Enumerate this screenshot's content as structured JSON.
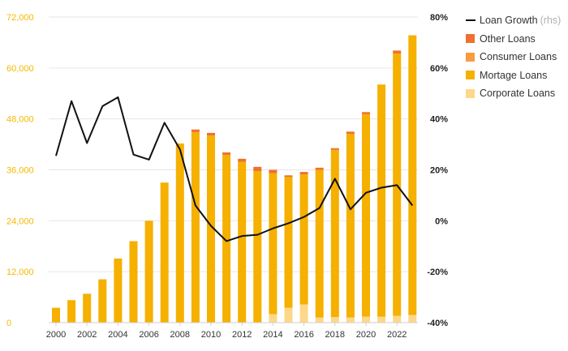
{
  "chart_data": {
    "type": "bar",
    "stacked": true,
    "x": [
      "2000",
      "2001",
      "2002",
      "2003",
      "2004",
      "2005",
      "2006",
      "2007",
      "2008",
      "2009",
      "2010",
      "2011",
      "2012",
      "2013",
      "2014",
      "2015",
      "2016",
      "2017",
      "2018",
      "2019",
      "2020",
      "2021",
      "2022",
      "2023"
    ],
    "x_tick_labels": [
      "2000",
      "2002",
      "2004",
      "2006",
      "2008",
      "2010",
      "2012",
      "2014",
      "2016",
      "2018",
      "2020",
      "2022"
    ],
    "y_left": {
      "ylim": [
        0,
        72000
      ],
      "ticks": [
        "0",
        "12,000",
        "24,000",
        "36,000",
        "48,000",
        "60,000",
        "72,000"
      ],
      "tick_values": [
        0,
        12000,
        24000,
        36000,
        48000,
        60000,
        72000
      ],
      "color": "#f5b800"
    },
    "y_right": {
      "ylim": [
        -40,
        80
      ],
      "ticks": [
        "-40%",
        "-20%",
        "0%",
        "20%",
        "40%",
        "60%",
        "80%"
      ],
      "tick_values": [
        -40,
        -20,
        0,
        20,
        40,
        60,
        80
      ]
    },
    "series": [
      {
        "name": "Corporate Loans",
        "color": "#fdd888",
        "values": [
          0,
          0,
          0,
          0,
          0,
          0,
          0,
          0,
          0,
          0,
          0,
          0,
          0,
          0,
          2000,
          3500,
          4300,
          1200,
          1300,
          1200,
          1400,
          1400,
          1600,
          1800
        ]
      },
      {
        "name": "Mortage Loans",
        "color": "#f5b000",
        "values": [
          3500,
          5300,
          6800,
          10200,
          15100,
          19200,
          24000,
          33000,
          42200,
          44900,
          44100,
          39500,
          37900,
          35700,
          33200,
          30800,
          30600,
          34800,
          39400,
          43300,
          47700,
          54700,
          61800,
          65900
        ]
      },
      {
        "name": "Consumer Loans",
        "color": "#f99b40",
        "values": [
          0,
          0,
          0,
          0,
          0,
          0,
          0,
          0,
          0,
          0,
          0,
          0,
          0,
          0,
          0,
          0,
          0,
          0,
          0,
          0,
          0,
          0,
          0,
          0
        ]
      },
      {
        "name": "Other Loans",
        "color": "#f07030",
        "values": [
          0,
          0,
          0,
          0,
          0,
          0,
          0,
          0,
          0,
          600,
          600,
          600,
          700,
          1000,
          800,
          400,
          600,
          500,
          400,
          500,
          500,
          0,
          700,
          0
        ]
      }
    ],
    "line": {
      "name": "Loan Growth",
      "suffix": "(rhs)",
      "color": "#111111",
      "axis": "right",
      "values": [
        25.5,
        47,
        30.5,
        45,
        48.5,
        26,
        24,
        38.5,
        28,
        6,
        -2,
        -8,
        -6,
        -5.5,
        -3,
        -1,
        1.5,
        5,
        16.5,
        4.5,
        11,
        13,
        14,
        6
      ]
    },
    "legend": {
      "position": "top-right"
    },
    "grid": true
  }
}
